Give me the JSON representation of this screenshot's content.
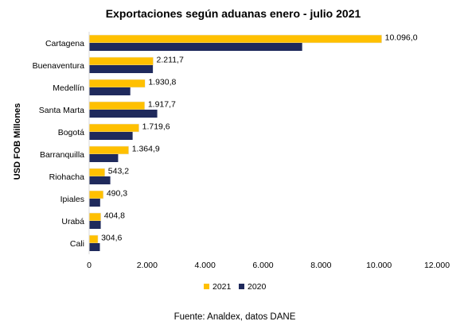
{
  "chart_data": {
    "type": "bar",
    "orientation": "horizontal",
    "title": "Exportaciones según aduanas enero - julio 2021",
    "ylabel": "USD FOB Millones",
    "xlabel": "",
    "categories": [
      "Cartagena",
      "Buenaventura",
      "Medellín",
      "Santa Marta",
      "Bogotá",
      "Barranquilla",
      "Riohacha",
      "Ipiales",
      "Urabá",
      "Cali"
    ],
    "series": [
      {
        "name": "2021",
        "color": "#FFC000",
        "values": [
          10096.0,
          2211.7,
          1930.8,
          1917.7,
          1719.6,
          1364.9,
          543.2,
          490.3,
          404.8,
          304.6
        ],
        "labels": [
          "10.096,0",
          "2.211,7",
          "1.930,8",
          "1.917,7",
          "1.719,6",
          "1.364,9",
          "543,2",
          "490,3",
          "404,8",
          "304,6"
        ]
      },
      {
        "name": "2020",
        "color": "#1F2A5C",
        "values": [
          7350,
          2200,
          1420,
          2350,
          1500,
          1000,
          730,
          380,
          400,
          370
        ]
      }
    ],
    "xlim": [
      0,
      12000
    ],
    "xticks": [
      0,
      2000,
      4000,
      6000,
      8000,
      10000,
      12000
    ],
    "xtick_labels": [
      "0",
      "2.000",
      "4.000",
      "6.000",
      "8.000",
      "10.000",
      "12.000"
    ],
    "grid": false,
    "legend_position": "bottom"
  },
  "source_note": "Fuente: Analdex, datos DANE"
}
